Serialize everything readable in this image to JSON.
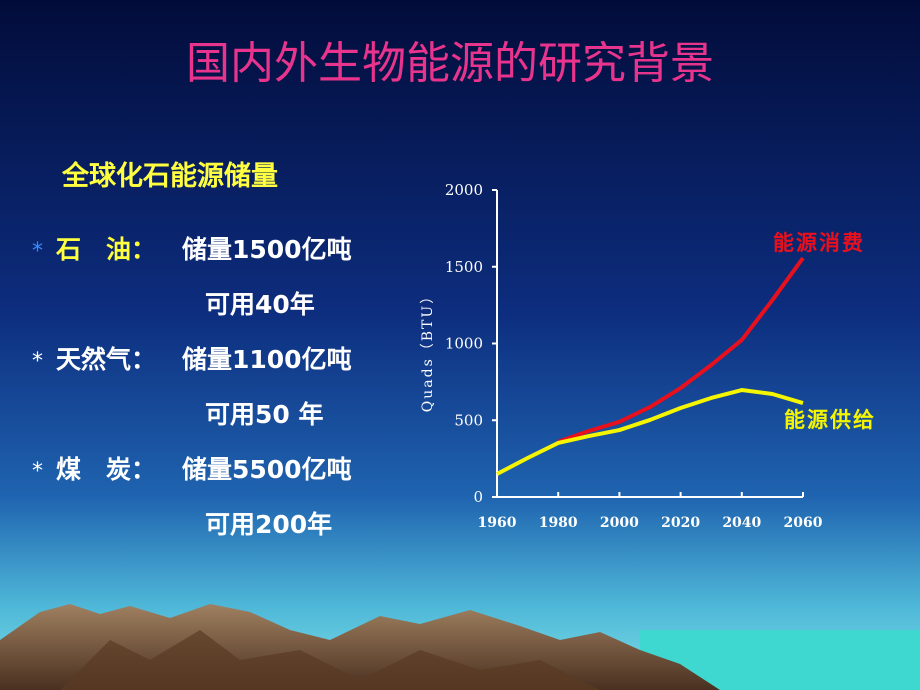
{
  "title": "国内外生物能源的研究背景",
  "subtitle": "全球化石能源储量",
  "items": [
    {
      "bullet": "*",
      "label": "石　油：",
      "reserve": "储量1500亿吨",
      "usable": "可用40年"
    },
    {
      "bullet": "*",
      "label": "天然气：",
      "reserve": "储量1100亿吨",
      "usable": "可用50 年"
    },
    {
      "bullet": "*",
      "label": "煤　炭：",
      "reserve": "储量5500亿吨",
      "usable": "可用200年"
    }
  ],
  "chart_data": {
    "type": "line",
    "y_label": "Quads（BTU）",
    "x": [
      1960,
      1970,
      1980,
      1990,
      2000,
      2010,
      2020,
      2030,
      2040,
      2050,
      2060
    ],
    "xlim": [
      1960,
      2060
    ],
    "xticks": [
      1960,
      1980,
      2000,
      2020,
      2040,
      2060
    ],
    "ylim": [
      0,
      2000
    ],
    "yticks": [
      0,
      500,
      1000,
      1500,
      2000
    ],
    "series": [
      {
        "name": "能源消费",
        "color": "#e8101c",
        "values": [
          null,
          null,
          360,
          430,
          490,
          586,
          710,
          860,
          1023,
          1283,
          1557
        ]
      },
      {
        "name": "能源供给",
        "color": "#f5f500",
        "values": [
          150,
          254,
          352,
          397,
          436,
          502,
          580,
          645,
          697,
          671,
          612
        ]
      }
    ]
  }
}
